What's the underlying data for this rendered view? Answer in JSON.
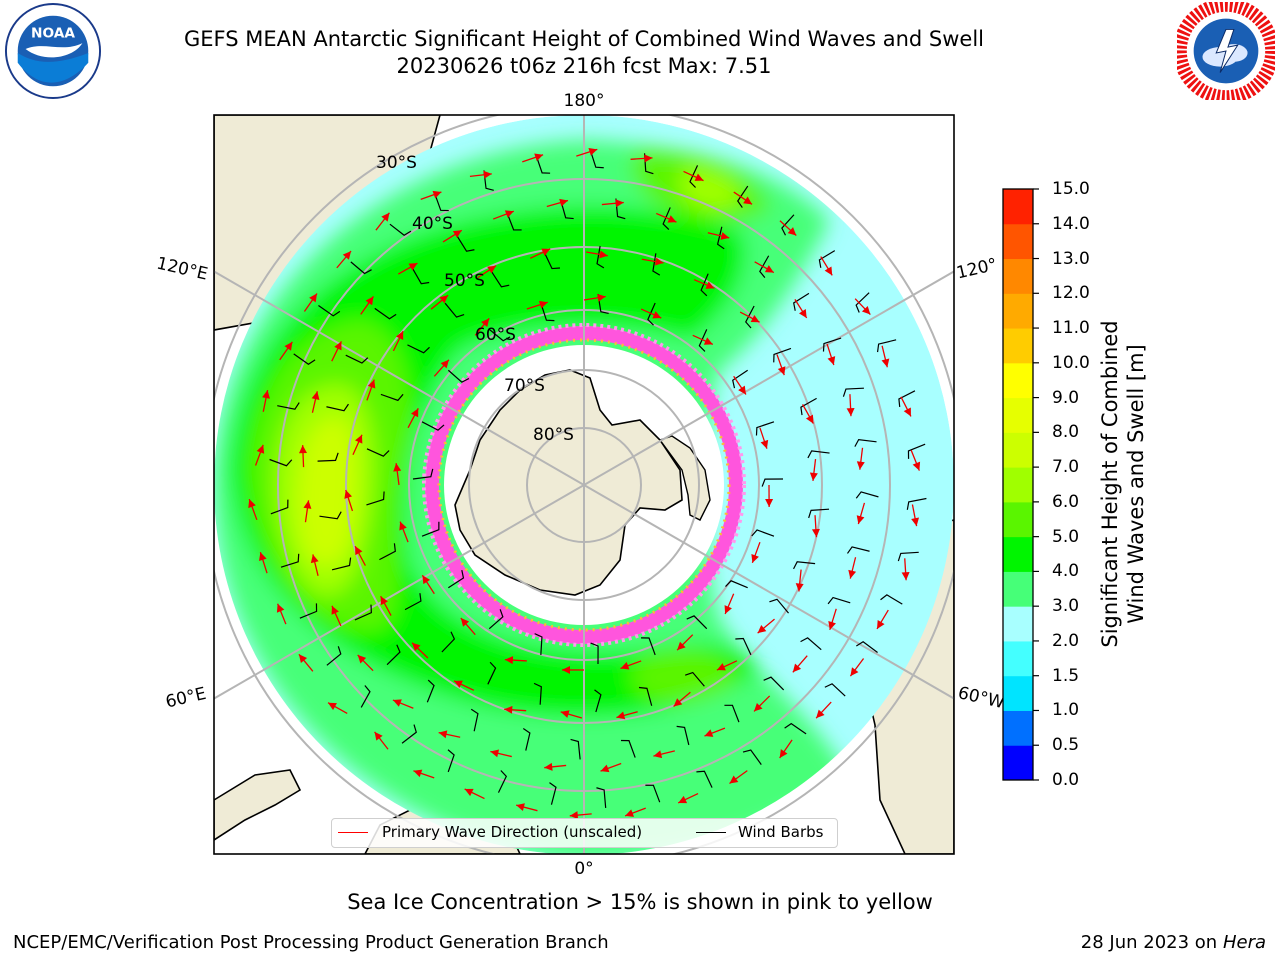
{
  "title_line1": "GEFS MEAN Antarctic Significant Height of Combined Wind Waves and Swell",
  "title_line2": "20230626 t06z 216h fcst   Max: 7.51",
  "logos": {
    "left": "noaa-logo",
    "left_text": "NOAA",
    "right": "nws-logo"
  },
  "map": {
    "projection": "south-polar-stereographic",
    "land_color": "#efebd6",
    "lon_labels": [
      "180°",
      "120°E",
      "120°",
      "60°E",
      "60°W",
      "0°"
    ],
    "lat_labels": [
      "30°S",
      "40°S",
      "50°S",
      "60°S",
      "70°S",
      "80°S"
    ]
  },
  "legend": {
    "wave_label": "Primary Wave Direction (unscaled)",
    "wave_color": "#ff0000",
    "barb_label": "Wind Barbs",
    "barb_color": "#000000"
  },
  "colorbar": {
    "label_line1": "Significant Height of Combined",
    "label_line2": "Wind Waves and Swell [m]",
    "ticks": [
      "0.0",
      "0.5",
      "1.0",
      "1.5",
      "2.0",
      "3.0",
      "4.0",
      "5.0",
      "6.0",
      "7.0",
      "8.0",
      "9.0",
      "10.0",
      "11.0",
      "12.0",
      "13.0",
      "14.0",
      "15.0"
    ],
    "colors": [
      "#0000ff",
      "#0070ff",
      "#00e4ff",
      "#44ffff",
      "#a8ffff",
      "#46ff78",
      "#00f500",
      "#5af500",
      "#a0ff00",
      "#ccff00",
      "#e6ff00",
      "#ffff00",
      "#ffcc00",
      "#ffaa00",
      "#ff8800",
      "#ff5500",
      "#ff2200"
    ]
  },
  "sea_ice_note": "Sea Ice Concentration > 15% is shown in pink to yellow",
  "credit": "NCEP/EMC/Verification Post Processing Product Generation Branch",
  "date": "28 Jun 2023 on",
  "host": "Hera"
}
